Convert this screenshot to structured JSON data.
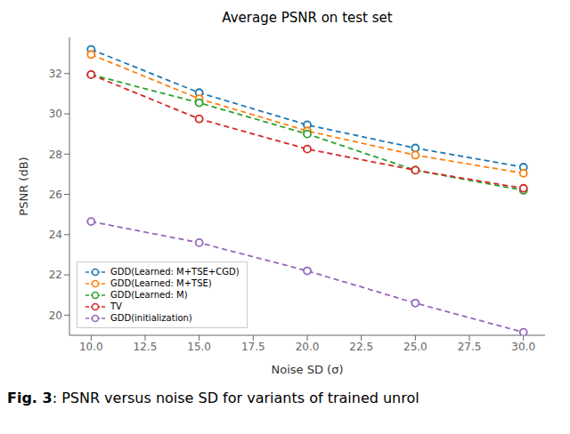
{
  "chart_data": {
    "type": "line",
    "title": "Average PSNR on test set",
    "xlabel": "Noise SD (σ)",
    "ylabel": "PSNR (dB)",
    "x": [
      10,
      15,
      20,
      25,
      30
    ],
    "series": [
      {
        "name": "GDD(Learned: M+TSE+CGD)",
        "color": "#1f77b4",
        "values": [
          33.2,
          31.05,
          29.45,
          28.3,
          27.35
        ]
      },
      {
        "name": "GDD(Learned: M+TSE)",
        "color": "#ff7f0e",
        "values": [
          32.95,
          30.75,
          29.15,
          27.95,
          27.05
        ]
      },
      {
        "name": "GDD(Learned: M)",
        "color": "#2ca02c",
        "values": [
          31.95,
          30.55,
          29.0,
          27.2,
          26.2
        ]
      },
      {
        "name": "TV",
        "color": "#d62728",
        "values": [
          31.95,
          29.75,
          28.25,
          27.2,
          26.3
        ]
      },
      {
        "name": "GDD(initialization)",
        "color": "#9467bd",
        "values": [
          24.65,
          23.6,
          22.2,
          20.6,
          19.15
        ]
      }
    ],
    "xlim": [
      9.0,
      31.0
    ],
    "ylim": [
      19.0,
      33.8
    ],
    "xticks": [
      {
        "value": 10,
        "label": "10.0"
      },
      12.5,
      {
        "value": 15,
        "label": "15.0"
      },
      17.5,
      {
        "value": 20,
        "label": "20.0"
      },
      22.5,
      {
        "value": 25,
        "label": "25.0"
      },
      27.5,
      {
        "value": 30,
        "label": "30.0"
      }
    ],
    "yticks": [
      20,
      22,
      24,
      26,
      28,
      30,
      32
    ],
    "grid": false,
    "legend": "lower left",
    "line_style": "dashed",
    "marker": "o",
    "caption": [
      "Fig. 3",
      ": PSNR versus noise SD for variants of trained unrol"
    ]
  }
}
